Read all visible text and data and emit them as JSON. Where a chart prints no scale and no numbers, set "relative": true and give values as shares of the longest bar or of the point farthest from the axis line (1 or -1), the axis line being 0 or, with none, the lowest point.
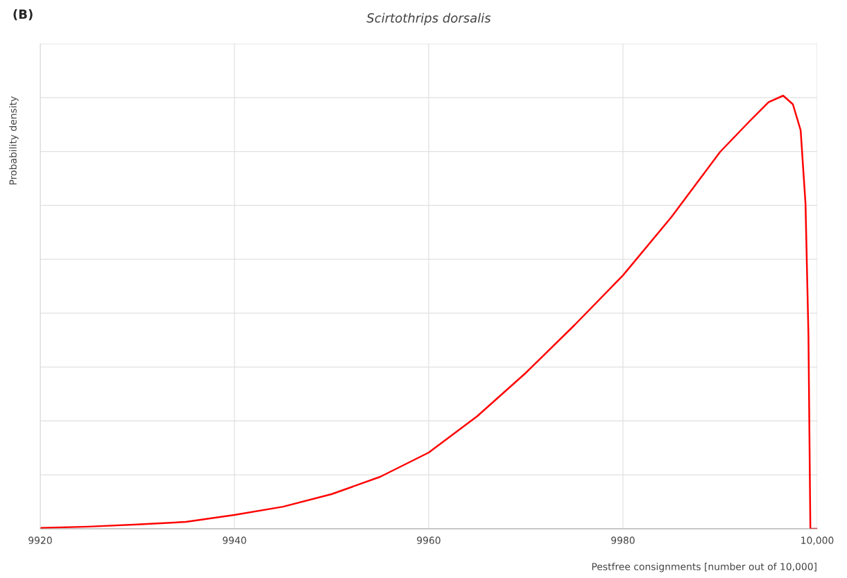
{
  "chart_data": {
    "type": "line",
    "title": "Scirtothrips dorsalis",
    "annotations": [
      "(B)"
    ],
    "ylabel": "Probability density",
    "xlabel": "Pestfree consignments [number out of 10,000]",
    "relative": true,
    "xlim": [
      9920,
      10000
    ],
    "xticks": [
      9920,
      9940,
      9960,
      9980,
      {
        "value": 10000,
        "label": "10,000"
      }
    ],
    "grid": true,
    "marker": "none",
    "line_style": "solid",
    "series": [
      {
        "color": "#ff0000",
        "x": [
          9920,
          9925,
          9930,
          9935,
          9940,
          9945,
          9950,
          9955,
          9960,
          9965,
          9970,
          9975,
          9980,
          9985,
          9990,
          9993,
          9995,
          9996.5,
          9997.5,
          9998.3,
          9998.8,
          9999.1,
          9999.3,
          10000
        ],
        "values": [
          0.002,
          0.005,
          0.01,
          0.016,
          0.032,
          0.051,
          0.08,
          0.12,
          0.176,
          0.26,
          0.36,
          0.47,
          0.585,
          0.72,
          0.87,
          0.94,
          0.985,
          1.0,
          0.98,
          0.92,
          0.75,
          0.45,
          0,
          0
        ]
      }
    ]
  }
}
